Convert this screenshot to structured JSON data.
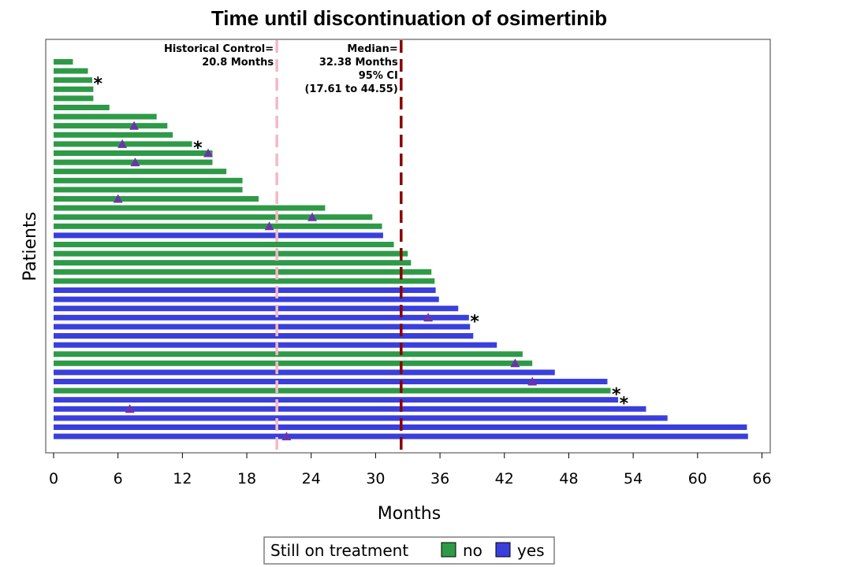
{
  "chart_data": {
    "type": "bar",
    "orientation": "horizontal",
    "title": "Time until discontinuation of osimertinib",
    "xlabel": "Months",
    "ylabel": "Patients",
    "xlim": [
      0,
      66
    ],
    "xticks": [
      0,
      6,
      12,
      18,
      24,
      30,
      36,
      42,
      48,
      54,
      60,
      66
    ],
    "legend": {
      "title": "Still on treatment",
      "placement": "bottom",
      "entries": [
        {
          "label": "no",
          "color": "#2e9a48"
        },
        {
          "label": "yes",
          "color": "#3a3fdc"
        }
      ]
    },
    "reference_lines": [
      {
        "x": 20.8,
        "label_lines": [
          "Historical Control=",
          "20.8 Months"
        ],
        "color": "#f4b8c4",
        "style": "dashed"
      },
      {
        "x": 32.38,
        "label_lines": [
          "Median=",
          "32.38 Months",
          "95% CI",
          "(17.61 to 44.55)"
        ],
        "color": "#8b0000",
        "style": "dashed"
      }
    ],
    "marker_colors": {
      "triangle": "#6a35a8",
      "asterisk": "#000000"
    },
    "asterisk_symbol": "*",
    "patients": [
      {
        "value": 1.8,
        "on_treatment": "no"
      },
      {
        "value": 3.2,
        "on_treatment": "no"
      },
      {
        "value": 3.6,
        "on_treatment": "no",
        "asterisk": true
      },
      {
        "value": 3.7,
        "on_treatment": "no"
      },
      {
        "value": 3.7,
        "on_treatment": "no"
      },
      {
        "value": 5.2,
        "on_treatment": "no"
      },
      {
        "value": 9.6,
        "on_treatment": "no"
      },
      {
        "value": 10.6,
        "on_treatment": "no",
        "triangle": 7.5
      },
      {
        "value": 11.1,
        "on_treatment": "no"
      },
      {
        "value": 12.9,
        "on_treatment": "no",
        "triangle": 6.4,
        "asterisk": true
      },
      {
        "value": 14.8,
        "on_treatment": "no",
        "triangle": 14.4
      },
      {
        "value": 14.8,
        "on_treatment": "no",
        "triangle": 7.6
      },
      {
        "value": 16.1,
        "on_treatment": "no"
      },
      {
        "value": 17.6,
        "on_treatment": "no"
      },
      {
        "value": 17.6,
        "on_treatment": "no"
      },
      {
        "value": 19.1,
        "on_treatment": "no",
        "triangle": 6.0
      },
      {
        "value": 25.3,
        "on_treatment": "no"
      },
      {
        "value": 29.7,
        "on_treatment": "no",
        "triangle": 24.1
      },
      {
        "value": 30.6,
        "on_treatment": "no",
        "triangle": 20.1
      },
      {
        "value": 30.7,
        "on_treatment": "yes"
      },
      {
        "value": 31.7,
        "on_treatment": "no"
      },
      {
        "value": 33.0,
        "on_treatment": "no"
      },
      {
        "value": 33.3,
        "on_treatment": "no"
      },
      {
        "value": 35.2,
        "on_treatment": "no"
      },
      {
        "value": 35.5,
        "on_treatment": "no"
      },
      {
        "value": 35.6,
        "on_treatment": "yes"
      },
      {
        "value": 35.9,
        "on_treatment": "yes"
      },
      {
        "value": 37.7,
        "on_treatment": "yes"
      },
      {
        "value": 38.7,
        "on_treatment": "yes",
        "triangle": 34.9,
        "asterisk": true
      },
      {
        "value": 38.8,
        "on_treatment": "yes"
      },
      {
        "value": 39.1,
        "on_treatment": "yes"
      },
      {
        "value": 41.3,
        "on_treatment": "yes"
      },
      {
        "value": 43.7,
        "on_treatment": "no"
      },
      {
        "value": 44.6,
        "on_treatment": "no",
        "triangle": 43.0
      },
      {
        "value": 46.7,
        "on_treatment": "yes"
      },
      {
        "value": 51.6,
        "on_treatment": "yes",
        "triangle": 44.6
      },
      {
        "value": 51.9,
        "on_treatment": "no",
        "asterisk": true
      },
      {
        "value": 52.6,
        "on_treatment": "yes",
        "asterisk": true
      },
      {
        "value": 55.2,
        "on_treatment": "yes",
        "triangle": 7.1
      },
      {
        "value": 57.2,
        "on_treatment": "yes"
      },
      {
        "value": 64.6,
        "on_treatment": "yes"
      },
      {
        "value": 64.7,
        "on_treatment": "yes",
        "triangle": 21.7
      }
    ]
  }
}
